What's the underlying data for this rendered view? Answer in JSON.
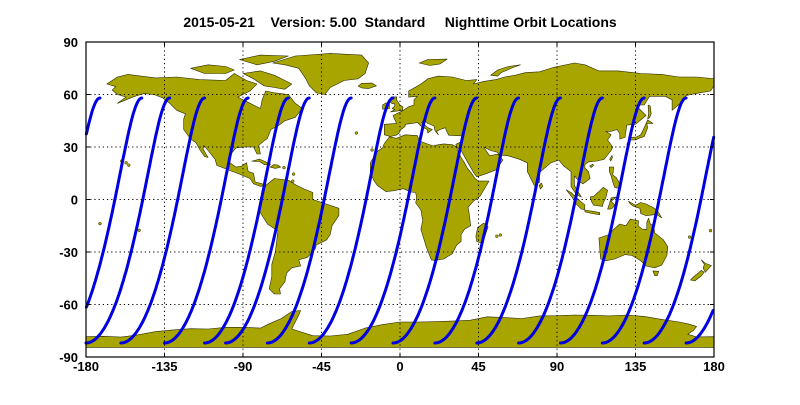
{
  "title": "2015-05-21    Version: 5.00  Standard     Nighttime Orbit Locations",
  "colors": {
    "land": "#a8a500",
    "ocean": "#ffffff",
    "coastline": "#2a2a00",
    "orbit": "#0000e0",
    "grid": "#000000"
  },
  "map": {
    "projection": "equirectangular",
    "lon_range": [
      -180,
      180
    ],
    "lat_range": [
      -90,
      90
    ],
    "lon_ticks": [
      -180,
      -135,
      -90,
      -45,
      0,
      45,
      90,
      135,
      180
    ],
    "lat_ticks": [
      90,
      60,
      30,
      0,
      -30,
      -60,
      -90
    ],
    "lon_tick_labels": [
      "-180",
      "-135",
      "-90",
      "-45",
      "0",
      "45",
      "90",
      "135",
      "180"
    ],
    "lat_tick_labels": [
      "90",
      "60",
      "30",
      "0",
      "-30",
      "-60",
      "-90"
    ],
    "grid": "dotted"
  },
  "orbits": {
    "description_of_shape": "northward nighttime tracks from Antarctica to ~58N",
    "track_start_lons": [
      -180,
      -160,
      -135,
      -112,
      -100,
      -76,
      -52,
      -28,
      -4,
      20,
      44,
      68,
      92,
      116,
      140,
      164
    ],
    "max_lat": 58,
    "min_lat": -82
  }
}
